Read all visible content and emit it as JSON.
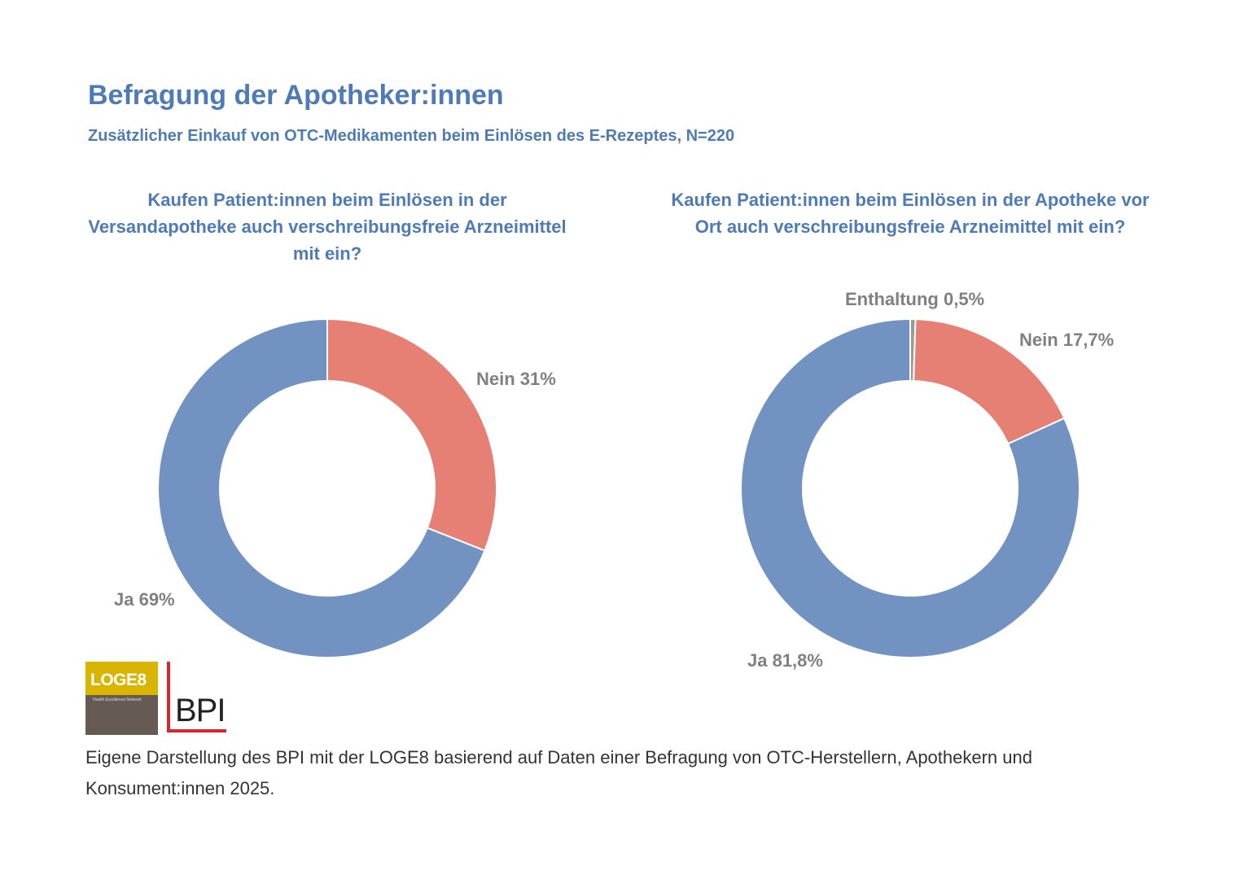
{
  "header": {
    "title": "Befragung der Apotheker:innen",
    "subtitle": "Zusätzlicher Einkauf von OTC-Medikamenten beim Einlösen des E-Rezeptes, N=220"
  },
  "chart_data": [
    {
      "type": "pie",
      "variant": "donut",
      "title": "Kaufen Patient:innen beim Einlösen in der Versandapotheke auch verschreibungsfreie Arzneimittel mit ein?",
      "slices": [
        {
          "label": "Nein",
          "value": 31,
          "display": "Nein 31%",
          "color": "#e67f74"
        },
        {
          "label": "Ja",
          "value": 69,
          "display": "Ja 69%",
          "color": "#7292c2"
        }
      ],
      "start": "top, clockwise"
    },
    {
      "type": "pie",
      "variant": "donut",
      "title": "Kaufen Patient:innen beim Einlösen in der Apotheke vor Ort auch verschreibungsfreie Arzneimittel mit ein?",
      "slices": [
        {
          "label": "Enthaltung",
          "value": 0.5,
          "display": "Enthaltung 0,5%",
          "color": "#9a9a9a"
        },
        {
          "label": "Nein",
          "value": 17.7,
          "display": "Nein 17,7%",
          "color": "#e67f74"
        },
        {
          "label": "Ja",
          "value": 81.8,
          "display": "Ja 81,8%",
          "color": "#7292c2"
        }
      ],
      "start": "top, clockwise"
    }
  ],
  "logos": {
    "loge8_name": "LOGE8",
    "loge8_tagline": "Health.Excellence.Network",
    "bpi_name": "BPI"
  },
  "footer": {
    "source": "Eigene Darstellung des BPI mit der LOGE8 basierend auf Daten einer Befragung von OTC-Herstellern, Apothekern und Konsument:innen 2025."
  }
}
